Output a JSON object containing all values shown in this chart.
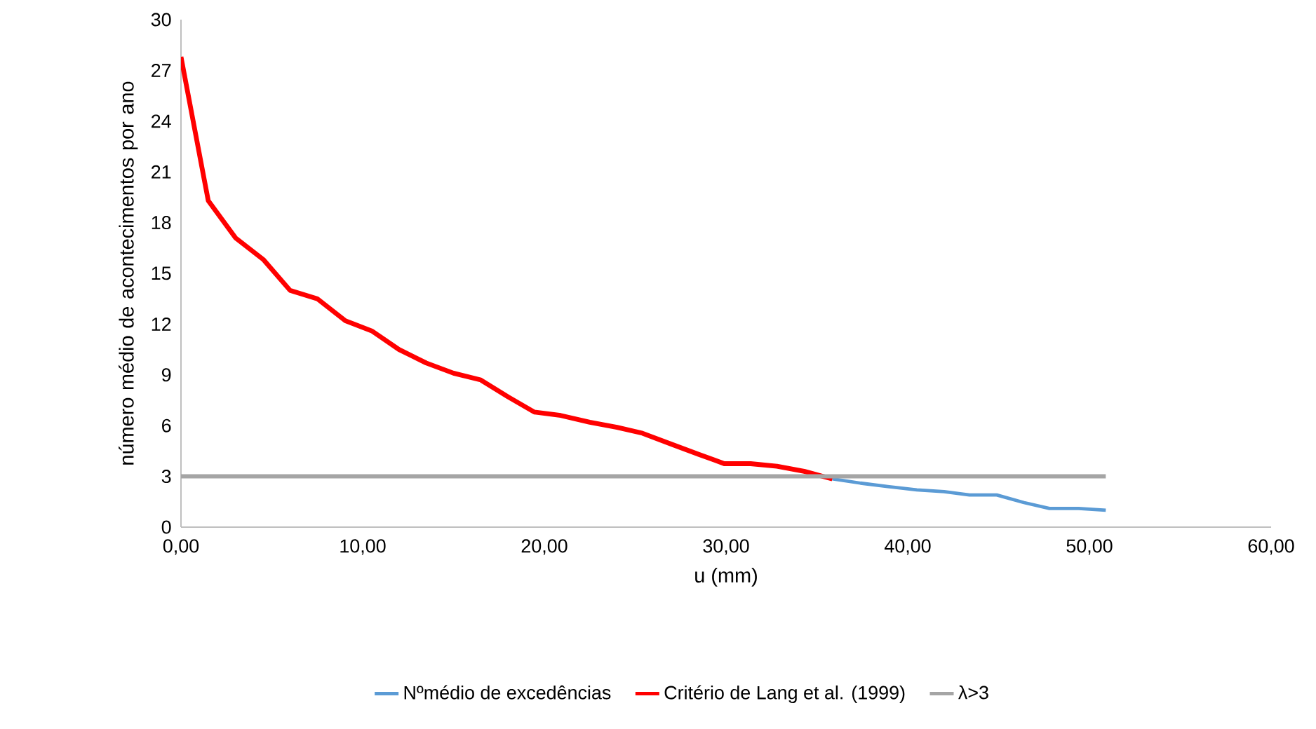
{
  "chart_data": {
    "type": "line",
    "xlabel": "u (mm)",
    "ylabel": "número médio de acontecimentos por ano",
    "xlim": [
      0,
      60
    ],
    "ylim": [
      0,
      30
    ],
    "xticks": [
      {
        "value": 0,
        "label": "0,00"
      },
      {
        "value": 10,
        "label": "10,00"
      },
      {
        "value": 20,
        "label": "20,00"
      },
      {
        "value": 30,
        "label": "30,00"
      },
      {
        "value": 40,
        "label": "40,00"
      },
      {
        "value": 50,
        "label": "50,00"
      },
      {
        "value": 60,
        "label": "60,00"
      }
    ],
    "yticks": [
      0,
      3,
      6,
      9,
      12,
      15,
      18,
      21,
      24,
      27,
      30
    ],
    "legend": "bottom",
    "series": [
      {
        "name": "Nºmédio de excedências",
        "color": "#5b9bd5",
        "x": [
          35.85,
          37.4,
          38.9,
          40.5,
          42.0,
          43.4,
          44.9,
          46.4,
          47.8,
          49.4,
          50.9
        ],
        "values": [
          2.85,
          2.6,
          2.4,
          2.2,
          2.1,
          1.9,
          1.9,
          1.45,
          1.1,
          1.1,
          1.0
        ]
      },
      {
        "name": "Critério de Lang et al. (1999)",
        "color": "#ff0000",
        "x": [
          0,
          1.5,
          3.0,
          4.55,
          6.0,
          7.5,
          9.05,
          10.5,
          12.0,
          13.5,
          15.0,
          16.5,
          18.0,
          19.45,
          20.9,
          22.5,
          24.0,
          25.4,
          27.0,
          28.5,
          29.9,
          31.35,
          32.8,
          34.3,
          35.85
        ],
        "values": [
          27.8,
          19.3,
          17.1,
          15.8,
          14.0,
          13.5,
          12.2,
          11.6,
          10.5,
          9.7,
          9.1,
          8.7,
          7.7,
          6.8,
          6.6,
          6.2,
          5.9,
          5.55,
          4.9,
          4.3,
          3.75,
          3.75,
          3.6,
          3.3,
          2.85
        ]
      },
      {
        "name": "λ>3",
        "color": "#a5a5a5",
        "x": [
          0,
          50.9
        ],
        "values": [
          3,
          3
        ]
      }
    ]
  }
}
